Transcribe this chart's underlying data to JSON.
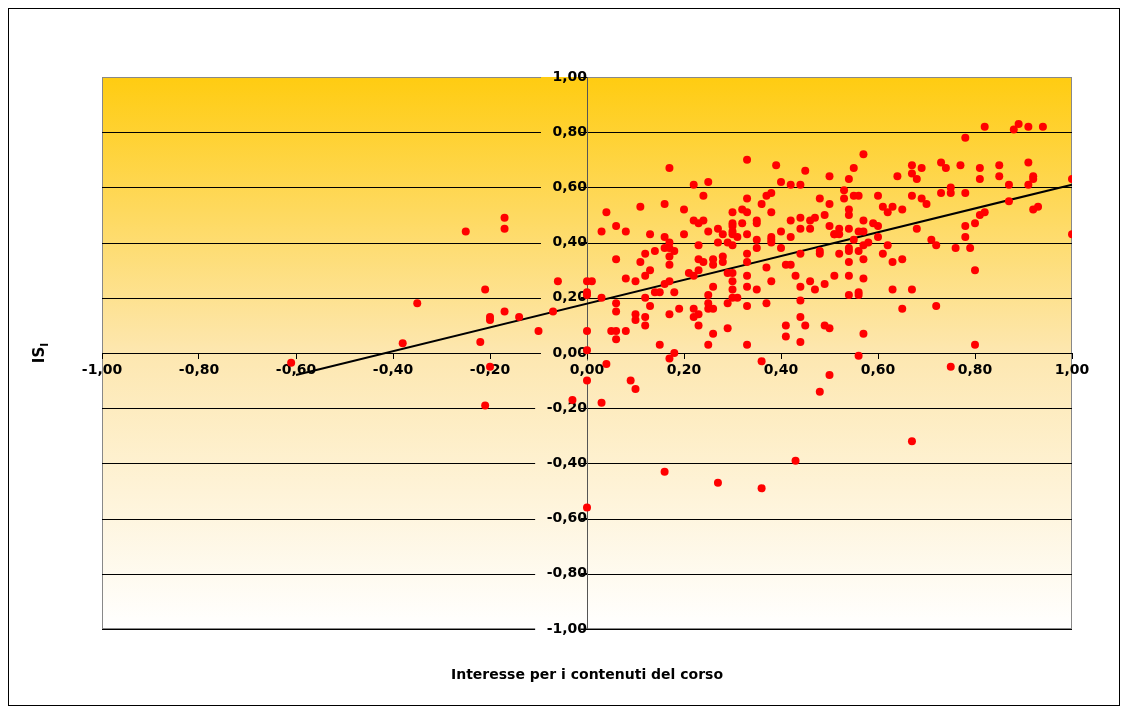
{
  "chart_data": {
    "type": "scatter",
    "xlabel": "Interesse per i contenuti del corso",
    "ylabel": "IS$_{I}$",
    "xlim": [
      -1,
      1
    ],
    "ylim": [
      -1,
      1
    ],
    "xticks": [
      {
        "value": -1,
        "label": "-1,00"
      },
      {
        "value": -0.8,
        "label": "-0,80"
      },
      {
        "value": -0.6,
        "label": "-0,60"
      },
      {
        "value": -0.4,
        "label": "-0,40"
      },
      {
        "value": -0.2,
        "label": "-0,20"
      },
      {
        "value": 0,
        "label": "0,00"
      },
      {
        "value": 0.2,
        "label": "0,20"
      },
      {
        "value": 0.4,
        "label": "0,40"
      },
      {
        "value": 0.6,
        "label": "0,60"
      },
      {
        "value": 0.8,
        "label": "0,80"
      },
      {
        "value": 1,
        "label": "1,00"
      }
    ],
    "yticks": [
      {
        "value": -1,
        "label": "-1,00"
      },
      {
        "value": -0.8,
        "label": "-0,80"
      },
      {
        "value": -0.6,
        "label": "-0,60"
      },
      {
        "value": -0.4,
        "label": "-0,40"
      },
      {
        "value": -0.2,
        "label": "-0,20"
      },
      {
        "value": 0,
        "label": "0,00"
      },
      {
        "value": 0.2,
        "label": "0,20"
      },
      {
        "value": 0.4,
        "label": "0,40"
      },
      {
        "value": 0.6,
        "label": "0,60"
      },
      {
        "value": 0.8,
        "label": "0,80"
      },
      {
        "value": 1,
        "label": "1,00"
      }
    ],
    "grid": "y",
    "series": [
      {
        "marker": "circle",
        "color": "#ff0000",
        "x": [
          -0.61,
          -0.35,
          -0.38,
          -0.25,
          -0.17,
          -0.17,
          -0.21,
          -0.2,
          -0.2,
          -0.17,
          -0.14,
          -0.22,
          -0.2,
          -0.21,
          -0.1,
          -0.07,
          -0.06,
          0,
          0,
          0,
          0,
          0,
          0,
          -0.03,
          0,
          0.33,
          0.17,
          0.39,
          0.45,
          0.5,
          0.22,
          0.25,
          0.4,
          0.42,
          0.44,
          0.24,
          0.38,
          0.37,
          0.33,
          0.48,
          0.11,
          0.16,
          0.36,
          0.5,
          0.04,
          0.2,
          0.3,
          0.32,
          0.33,
          0.38,
          0.49,
          0.22,
          0.24,
          0.23,
          0.3,
          0.3,
          0.32,
          0.35,
          0.35,
          0.42,
          0.44,
          0.46,
          0.47,
          0.5,
          0.06,
          0.03,
          0.08,
          0.13,
          0.2,
          0.25,
          0.27,
          0.28,
          0.3,
          0.3,
          0.31,
          0.33,
          0.35,
          0.38,
          0.38,
          0.4,
          0.42,
          0.44,
          0.46,
          0.51,
          0.16,
          0.17,
          0.17,
          0.16,
          0.18,
          0.27,
          0.29,
          0.3,
          0.23,
          0.12,
          0.14,
          0.17,
          0.23,
          0.24,
          0.26,
          0.28,
          0.28,
          0.33,
          0.35,
          0.38,
          0.4,
          0.44,
          0.48,
          0.48,
          0.06,
          0.11,
          0.17,
          0.26,
          0.33,
          0.41,
          0.42,
          0.13,
          0.21,
          0.23,
          0.29,
          0.3,
          0.33,
          0.37,
          0.51,
          0.12,
          0.01,
          0.08,
          0.1,
          0.16,
          0.17,
          0.22,
          0.3,
          0.38,
          0.43,
          0.46,
          0.49,
          0.03,
          0.18,
          0.14,
          0.15,
          0.26,
          0.3,
          0.33,
          0.35,
          0.44,
          0.47,
          0.12,
          0.13,
          0.06,
          0.06,
          0.25,
          0.25,
          0.25,
          0.26,
          0.29,
          0.3,
          0.31,
          0.33,
          0.37,
          0.44,
          0.19,
          0.17,
          0.22,
          0.22,
          0.23,
          0.1,
          0.1,
          0.12,
          0.12,
          0.44,
          0.45,
          0.41,
          0.41,
          0.44,
          0.23,
          0.29,
          0.26,
          0.05,
          0.06,
          0.06,
          0.08,
          0.15,
          0.18,
          0.17,
          0.25,
          0.33,
          0.36,
          0.49,
          0.5,
          0.5,
          0.04,
          0.09,
          0.1,
          0.03,
          0.48,
          0.16,
          0.27,
          0.36,
          0.43,
          0.82,
          0.88,
          0.89,
          0.91,
          0.94,
          0.78,
          0.57,
          0.73,
          0.74,
          0.77,
          0.81,
          0.85,
          0.91,
          0.67,
          0.67,
          0.69,
          0.68,
          0.64,
          0.81,
          0.85,
          0.92,
          0.92,
          0.91,
          1,
          0.87,
          0.55,
          0.54,
          0.53,
          0.53,
          0.55,
          0.56,
          0.6,
          0.67,
          0.69,
          0.7,
          0.73,
          0.75,
          0.75,
          0.78,
          0.87,
          0.61,
          0.62,
          0.63,
          0.65,
          0.54,
          0.54,
          0.81,
          0.82,
          0.92,
          0.93,
          0.8,
          0.78,
          0.78,
          0.52,
          0.51,
          0.52,
          0.54,
          0.56,
          0.57,
          0.57,
          0.59,
          0.6,
          0.68,
          0.58,
          0.6,
          0.55,
          0.57,
          0.71,
          0.72,
          0.76,
          0.79,
          1,
          0.62,
          0.54,
          0.54,
          0.56,
          0.52,
          0.61,
          0.57,
          0.65,
          0.63,
          0.54,
          0.8,
          0.54,
          0.57,
          0.54,
          0.56,
          0.56,
          0.63,
          0.67,
          0.65,
          0.72,
          0.57,
          0.8,
          0.56,
          0.75,
          0.67
        ],
        "values": [
          -0.035,
          0.18,
          0.035,
          0.44,
          0.49,
          0.45,
          0.23,
          0.13,
          0.12,
          0.15,
          0.13,
          0.04,
          -0.05,
          -0.19,
          0.08,
          0.15,
          0.26,
          0.26,
          0.22,
          0.21,
          0.08,
          0.01,
          -0.1,
          -0.17,
          -0.56,
          0.7,
          0.67,
          0.68,
          0.66,
          0.64,
          0.61,
          0.62,
          0.62,
          0.61,
          0.61,
          0.57,
          0.58,
          0.57,
          0.56,
          0.56,
          0.53,
          0.54,
          0.54,
          0.54,
          0.51,
          0.52,
          0.51,
          0.52,
          0.51,
          0.51,
          0.5,
          0.48,
          0.48,
          0.47,
          0.47,
          0.46,
          0.47,
          0.48,
          0.47,
          0.48,
          0.49,
          0.48,
          0.49,
          0.46,
          0.46,
          0.44,
          0.44,
          0.43,
          0.43,
          0.44,
          0.45,
          0.43,
          0.44,
          0.43,
          0.42,
          0.43,
          0.41,
          0.42,
          0.41,
          0.44,
          0.42,
          0.45,
          0.45,
          0.43,
          0.42,
          0.4,
          0.38,
          0.38,
          0.37,
          0.4,
          0.4,
          0.39,
          0.39,
          0.36,
          0.37,
          0.35,
          0.34,
          0.33,
          0.34,
          0.33,
          0.35,
          0.36,
          0.38,
          0.4,
          0.38,
          0.36,
          0.37,
          0.36,
          0.34,
          0.33,
          0.32,
          0.32,
          0.33,
          0.32,
          0.32,
          0.3,
          0.29,
          0.3,
          0.29,
          0.29,
          0.28,
          0.31,
          0.28,
          0.28,
          0.26,
          0.27,
          0.26,
          0.25,
          0.26,
          0.28,
          0.26,
          0.26,
          0.28,
          0.26,
          0.25,
          0.2,
          0.22,
          0.22,
          0.22,
          0.24,
          0.23,
          0.24,
          0.23,
          0.24,
          0.23,
          0.2,
          0.17,
          0.18,
          0.15,
          0.21,
          0.18,
          0.16,
          0.16,
          0.18,
          0.2,
          0.2,
          0.17,
          0.18,
          0.19,
          0.16,
          0.14,
          0.16,
          0.13,
          0.14,
          0.14,
          0.12,
          0.13,
          0.1,
          0.13,
          0.1,
          0.1,
          0.06,
          0.04,
          0.1,
          0.09,
          0.07,
          0.08,
          0.08,
          0.05,
          0.08,
          0.03,
          0,
          -0.02,
          0.03,
          0.03,
          -0.03,
          0.1,
          0.09,
          -0.08,
          -0.04,
          -0.1,
          -0.13,
          -0.18,
          -0.14,
          -0.43,
          -0.47,
          -0.49,
          -0.39,
          0.82,
          0.81,
          0.83,
          0.82,
          0.82,
          0.78,
          0.72,
          0.69,
          0.67,
          0.68,
          0.67,
          0.68,
          0.69,
          0.68,
          0.65,
          0.67,
          0.63,
          0.64,
          0.63,
          0.64,
          0.64,
          0.63,
          0.61,
          0.63,
          0.61,
          0.67,
          0.63,
          0.59,
          0.56,
          0.57,
          0.57,
          0.57,
          0.57,
          0.56,
          0.54,
          0.58,
          0.6,
          0.58,
          0.58,
          0.55,
          0.53,
          0.51,
          0.53,
          0.52,
          0.52,
          0.5,
          0.5,
          0.51,
          0.52,
          0.53,
          0.47,
          0.46,
          0.42,
          0.45,
          0.43,
          0.43,
          0.45,
          0.44,
          0.44,
          0.48,
          0.47,
          0.46,
          0.45,
          0.4,
          0.42,
          0.41,
          0.39,
          0.41,
          0.39,
          0.38,
          0.38,
          0.43,
          0.39,
          0.38,
          0.37,
          0.37,
          0.36,
          0.36,
          0.34,
          0.34,
          0.33,
          0.33,
          0.3,
          0.28,
          0.27,
          0.21,
          0.22,
          0.21,
          0.23,
          0.23,
          0.16,
          0.17,
          0.07,
          0.03,
          -0.01,
          -0.05,
          -0.32
        ]
      },
      {
        "type": "line",
        "color": "#000000",
        "x": [
          -0.6,
          1
        ],
        "values": [
          -0.08,
          0.61
        ]
      }
    ]
  }
}
